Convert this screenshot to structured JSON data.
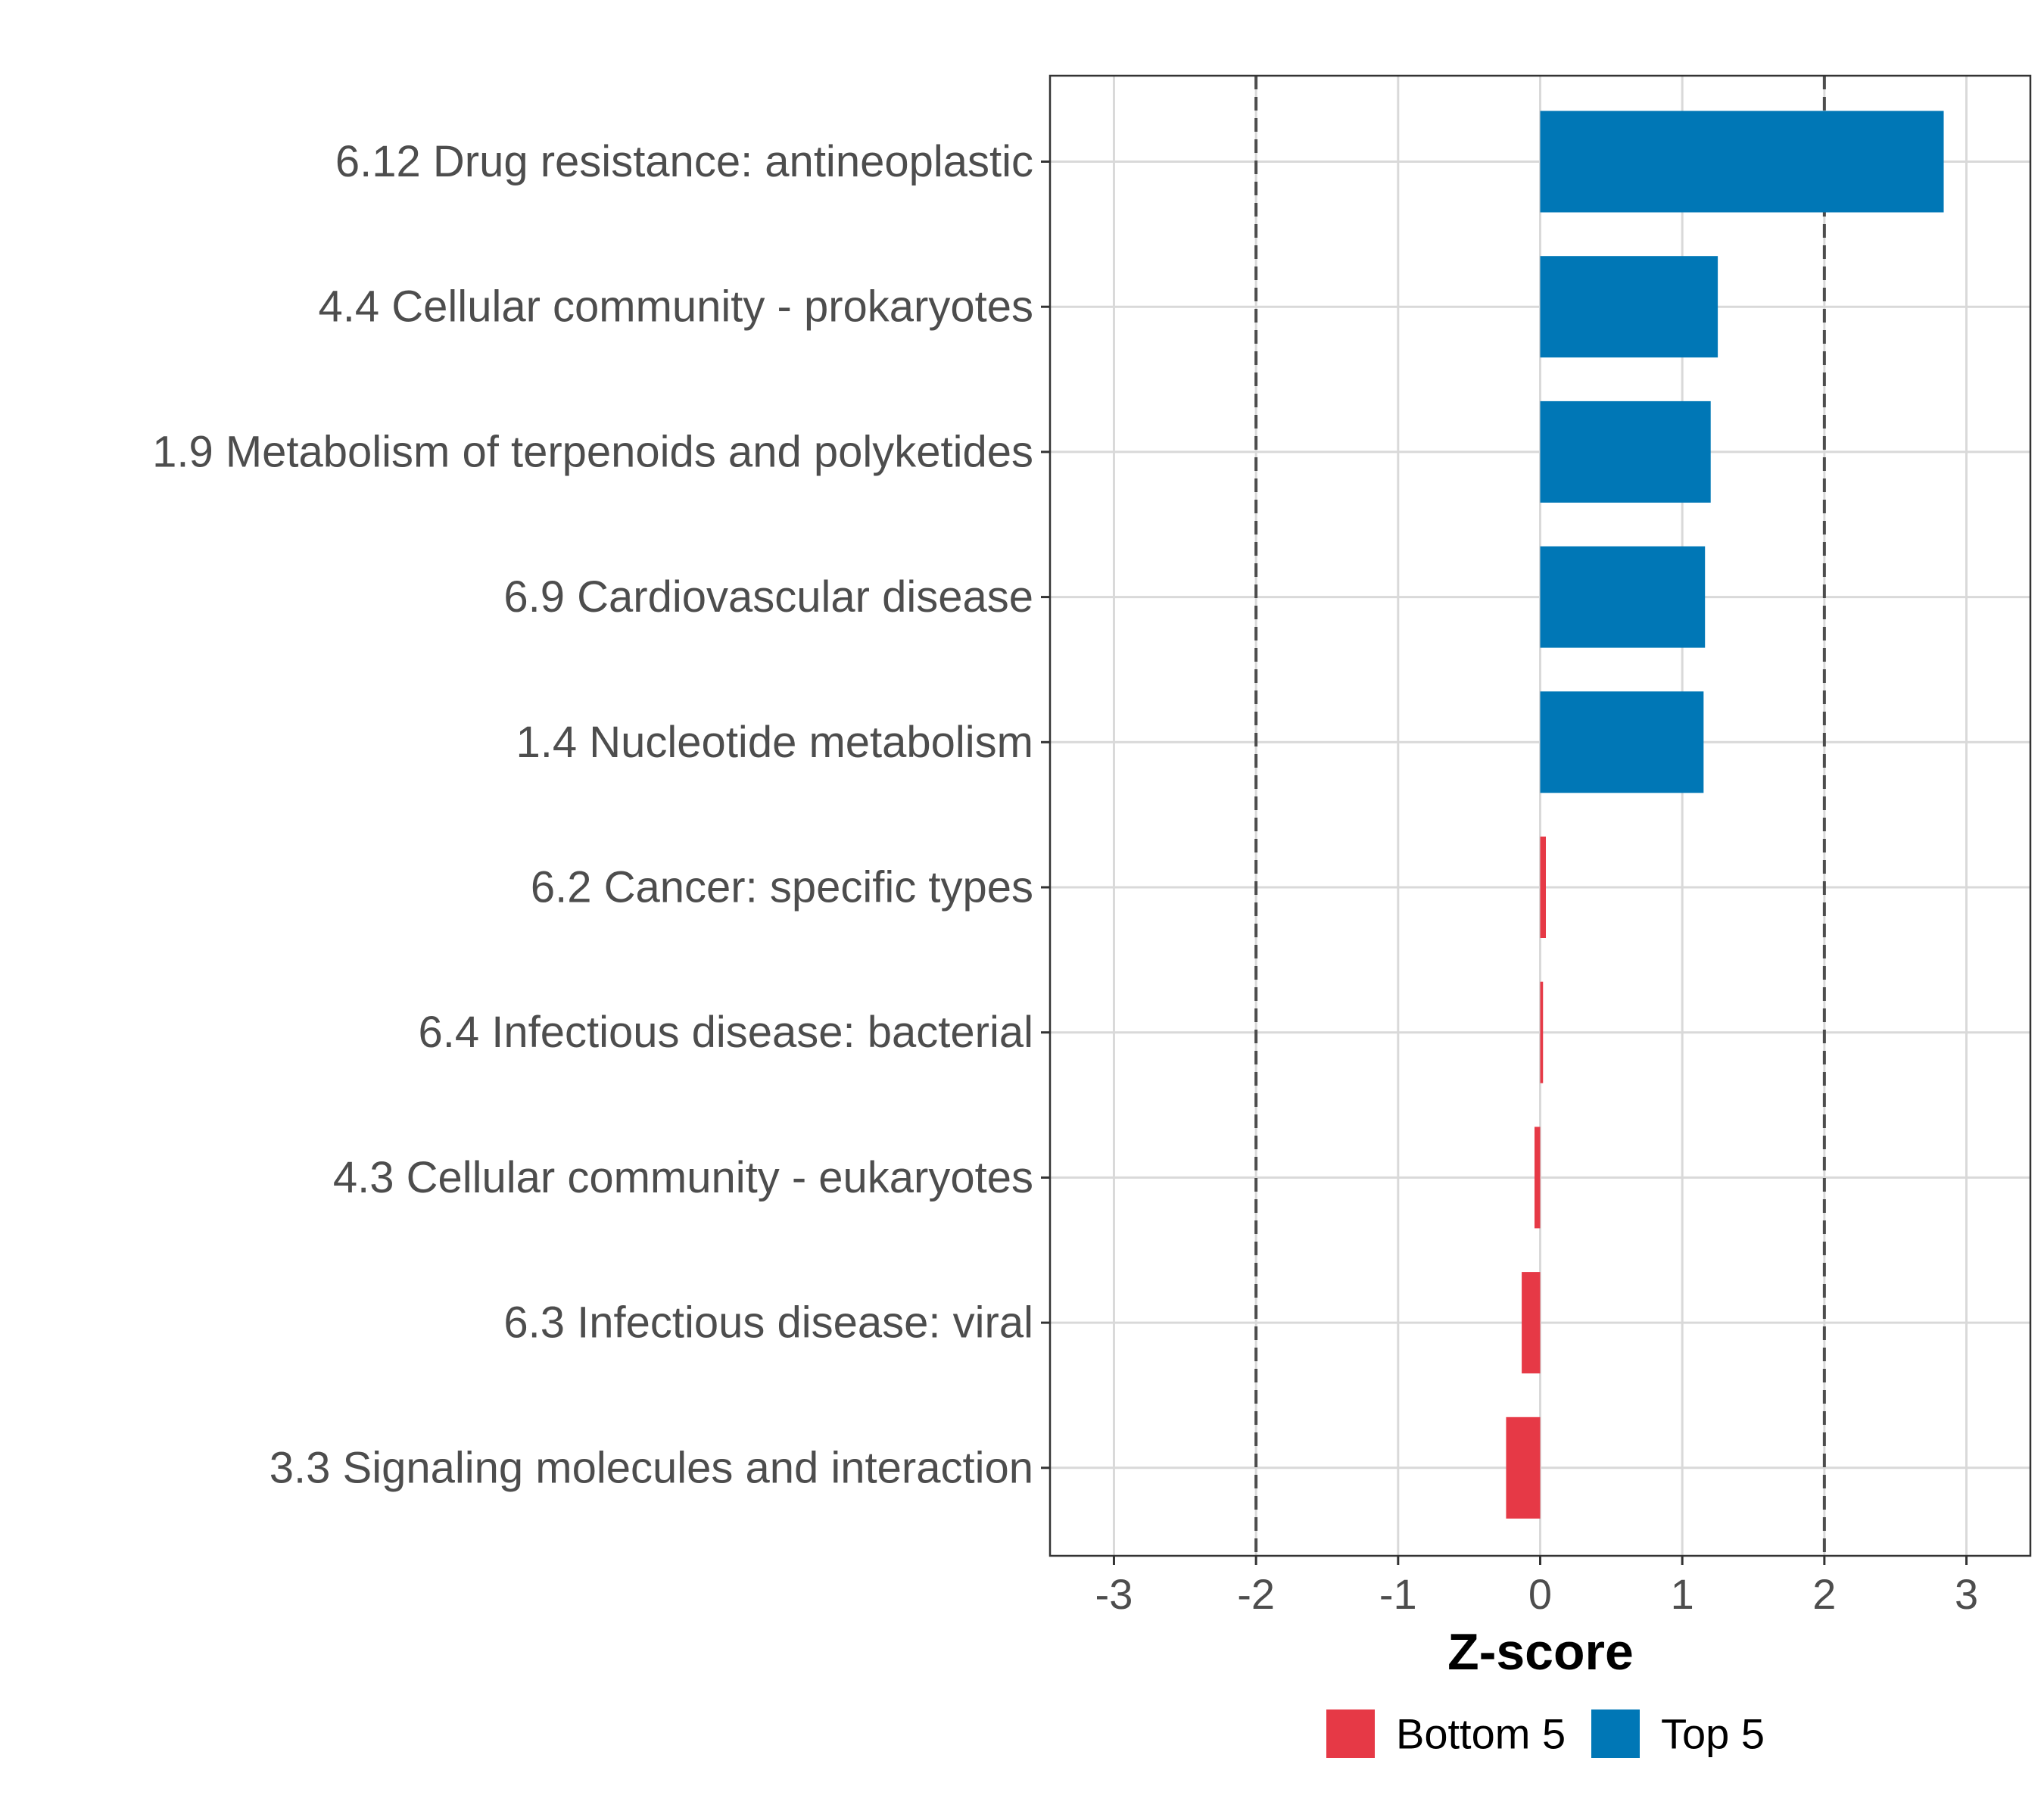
{
  "chart_data": {
    "type": "bar",
    "orientation": "horizontal",
    "title": "",
    "xlabel": "Z-score",
    "ylabel": "",
    "xlim": [
      -3.45,
      3.45
    ],
    "x_ticks": [
      "-3",
      "-2",
      "-1",
      "0",
      "1",
      "2",
      "3"
    ],
    "x_tick_values": [
      -3,
      -2,
      -1,
      0,
      1,
      2,
      3
    ],
    "reference_lines": [
      -2,
      2
    ],
    "grid": true,
    "legend_position": "bottom",
    "categories": [
      "6.12 Drug resistance: antineoplastic",
      "4.4 Cellular community - prokaryotes",
      "1.9 Metabolism of terpenoids and polyketides",
      "6.9 Cardiovascular disease",
      "1.4 Nucleotide metabolism",
      "6.2 Cancer: specific types",
      "6.4 Infectious disease: bacterial",
      "4.3 Cellular community - eukaryotes",
      "6.3 Infectious disease: viral",
      "3.3 Signaling molecules and interaction"
    ],
    "values": [
      2.84,
      1.25,
      1.2,
      1.16,
      1.15,
      0.04,
      0.02,
      -0.04,
      -0.13,
      -0.24
    ],
    "groups": [
      "Top 5",
      "Top 5",
      "Top 5",
      "Top 5",
      "Top 5",
      "Bottom 5",
      "Bottom 5",
      "Bottom 5",
      "Bottom 5",
      "Bottom 5"
    ],
    "legend": [
      {
        "name": "Bottom 5",
        "color": "#e63946"
      },
      {
        "name": "Top 5",
        "color": "#0077b6"
      }
    ]
  }
}
